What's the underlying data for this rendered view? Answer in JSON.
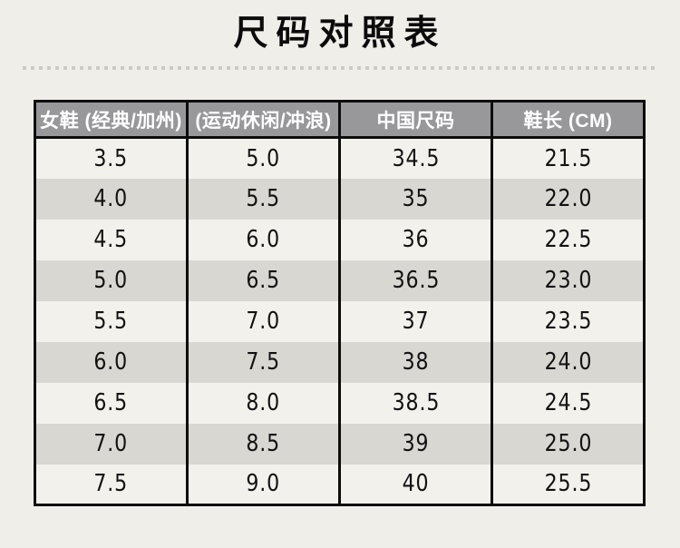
{
  "page": {
    "title": "尺码对照表"
  },
  "style": {
    "background": "#efeee9",
    "title_color": "#0b0b0b",
    "header_bg": "#98989b",
    "header_text": "#ffffff",
    "row_light": "#f2f1ec",
    "row_dark": "#d8d7d2",
    "table_border": "#0d0d0d",
    "dotted_separator": "#cbcbc4"
  },
  "chart_data": {
    "type": "table",
    "title": "尺码对照表",
    "columns": [
      "女鞋 (经典/加州)",
      "(运动休闲/冲浪)",
      "中国尺码",
      "鞋长 (CM)"
    ],
    "rows": [
      [
        "3.5",
        "5.0",
        "34.5",
        "21.5"
      ],
      [
        "4.0",
        "5.5",
        "35",
        "22.0"
      ],
      [
        "4.5",
        "6.0",
        "36",
        "22.5"
      ],
      [
        "5.0",
        "6.5",
        "36.5",
        "23.0"
      ],
      [
        "5.5",
        "7.0",
        "37",
        "23.5"
      ],
      [
        "6.0",
        "7.5",
        "38",
        "24.0"
      ],
      [
        "6.5",
        "8.0",
        "38.5",
        "24.5"
      ],
      [
        "7.0",
        "8.5",
        "39",
        "25.0"
      ],
      [
        "7.5",
        "9.0",
        "40",
        "25.5"
      ]
    ],
    "layout": {
      "header_row_striped": false,
      "body_alternating_rows": true,
      "first_body_row_shade": "light",
      "column_separators": "solid-black",
      "row_separators": "none"
    }
  }
}
